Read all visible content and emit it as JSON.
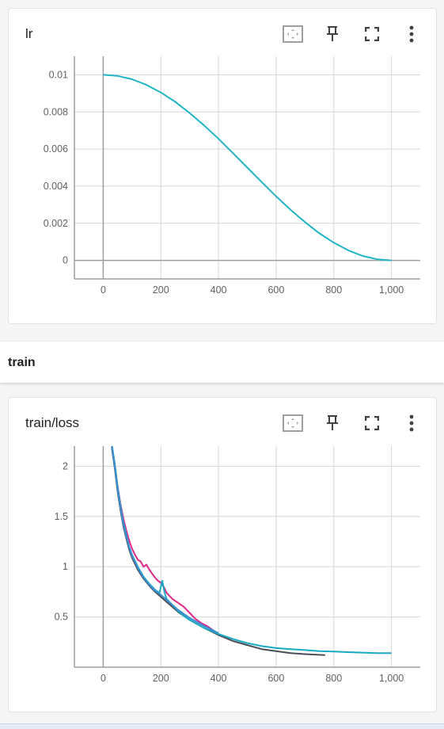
{
  "cards": {
    "lr": {
      "title": "lr"
    },
    "loss": {
      "title": "train/loss"
    }
  },
  "section": {
    "title": "train"
  },
  "toolbar_icons": [
    "fit-domain-icon",
    "pin-icon",
    "fullscreen-icon",
    "more-vert-icon"
  ],
  "colors": {
    "lr_line": "#1fb5c4",
    "grid": "#d6d6d6",
    "axis": "#9e9e9e",
    "series_pink": "#e0288a",
    "series_dark": "#4a4f57",
    "series_cyan": "#17aac2",
    "series_blue": "#3a8fd4"
  },
  "chart_data": [
    {
      "type": "line",
      "title": "lr",
      "xlim": [
        -100,
        1100
      ],
      "ylim": [
        -0.001,
        0.011
      ],
      "x_ticks": [
        "0",
        "200",
        "400",
        "600",
        "800",
        "1,000"
      ],
      "x_tick_values": [
        0,
        200,
        400,
        600,
        800,
        1000
      ],
      "y_ticks": [
        "0",
        "0.002",
        "0.004",
        "0.006",
        "0.008",
        "0.01"
      ],
      "y_tick_values": [
        0,
        0.002,
        0.004,
        0.006,
        0.008,
        0.01
      ],
      "grid": true,
      "series": [
        {
          "x": [
            0,
            50,
            100,
            150,
            200,
            250,
            300,
            350,
            400,
            450,
            500,
            550,
            600,
            650,
            700,
            750,
            800,
            850,
            900,
            950,
            1000
          ],
          "values": [
            0.01,
            0.00994,
            0.00976,
            0.00946,
            0.00905,
            0.00854,
            0.00794,
            0.00727,
            0.00655,
            0.00578,
            0.005,
            0.00422,
            0.00345,
            0.00273,
            0.00206,
            0.00146,
            0.00095,
            0.00054,
            0.00024,
            6e-05,
            0.0
          ]
        }
      ]
    },
    {
      "type": "line",
      "title": "train/loss",
      "xlim": [
        -100,
        1100
      ],
      "ylim": [
        0,
        2.2
      ],
      "x_ticks": [
        "0",
        "200",
        "400",
        "600",
        "800",
        "1,000"
      ],
      "x_tick_values": [
        0,
        200,
        400,
        600,
        800,
        1000
      ],
      "y_ticks": [
        "0.5",
        "1",
        "1.5",
        "2"
      ],
      "y_tick_values": [
        0.5,
        1,
        1.5,
        2
      ],
      "grid": true,
      "series": [
        {
          "x": [
            30,
            40,
            50,
            60,
            70,
            80,
            90,
            100,
            110,
            120,
            130,
            140,
            150,
            160,
            170,
            180,
            190,
            200,
            210,
            220,
            240,
            260,
            280,
            300,
            320,
            340,
            360,
            380,
            400
          ],
          "values": [
            2.2,
            2.02,
            1.8,
            1.62,
            1.48,
            1.36,
            1.26,
            1.18,
            1.12,
            1.07,
            1.05,
            1.0,
            1.02,
            0.97,
            0.93,
            0.89,
            0.86,
            0.84,
            0.8,
            0.74,
            0.68,
            0.64,
            0.6,
            0.54,
            0.48,
            0.44,
            0.41,
            0.37,
            0.33
          ]
        },
        {
          "x": [
            30,
            40,
            50,
            60,
            70,
            80,
            90,
            100,
            120,
            140,
            160,
            180,
            200,
            220,
            240,
            260,
            280,
            300,
            350,
            400,
            450,
            500,
            550,
            600,
            650,
            700,
            770
          ],
          "values": [
            2.18,
            1.98,
            1.75,
            1.56,
            1.4,
            1.28,
            1.17,
            1.09,
            0.97,
            0.88,
            0.81,
            0.75,
            0.7,
            0.65,
            0.6,
            0.55,
            0.51,
            0.47,
            0.39,
            0.32,
            0.26,
            0.22,
            0.18,
            0.16,
            0.14,
            0.13,
            0.12
          ]
        },
        {
          "x": [
            30,
            40,
            50,
            60,
            70,
            80,
            90,
            100,
            120,
            140,
            160,
            180,
            195,
            205,
            210,
            215,
            220,
            240,
            260,
            280,
            300,
            350,
            400,
            450,
            500,
            550,
            600,
            650,
            700,
            750,
            800,
            850,
            900,
            950,
            1000
          ],
          "values": [
            2.22,
            2.02,
            1.8,
            1.6,
            1.44,
            1.32,
            1.2,
            1.12,
            1.0,
            0.9,
            0.83,
            0.77,
            0.74,
            0.86,
            0.78,
            0.72,
            0.68,
            0.62,
            0.56,
            0.51,
            0.47,
            0.39,
            0.33,
            0.28,
            0.24,
            0.21,
            0.19,
            0.18,
            0.17,
            0.16,
            0.155,
            0.15,
            0.145,
            0.14,
            0.14
          ]
        },
        {
          "x": [
            30,
            40,
            50,
            60,
            70,
            80,
            90,
            100,
            120,
            140,
            160,
            180,
            200,
            220,
            240,
            260,
            280,
            300,
            350,
            400
          ],
          "values": [
            2.2,
            2.0,
            1.78,
            1.58,
            1.42,
            1.3,
            1.19,
            1.11,
            0.99,
            0.89,
            0.82,
            0.76,
            0.72,
            0.67,
            0.62,
            0.57,
            0.53,
            0.49,
            0.41,
            0.34
          ]
        }
      ]
    }
  ]
}
